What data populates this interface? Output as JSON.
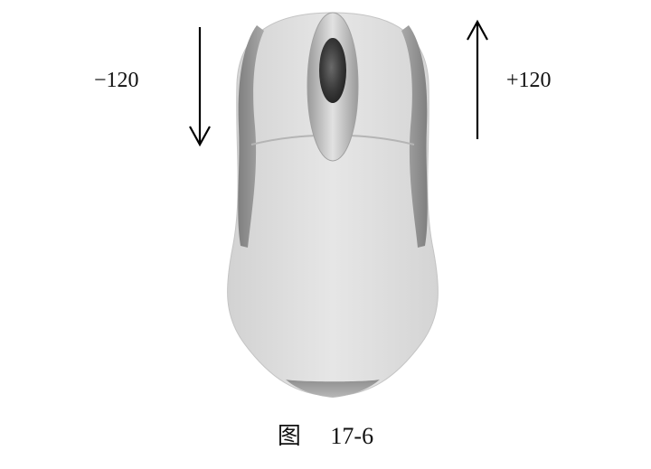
{
  "labels": {
    "scroll_down": "−120",
    "scroll_up": "+120"
  },
  "caption": "图　 17-6",
  "icons": {
    "mouse": "computer-mouse-icon",
    "down_arrow": "arrow-down-icon",
    "up_arrow": "arrow-up-icon"
  },
  "colors": {
    "mouse_body": "#dedede",
    "side_grip": "#8d8d8d",
    "wheel_dark": "#3a3a3a",
    "arrow": "#000000"
  }
}
